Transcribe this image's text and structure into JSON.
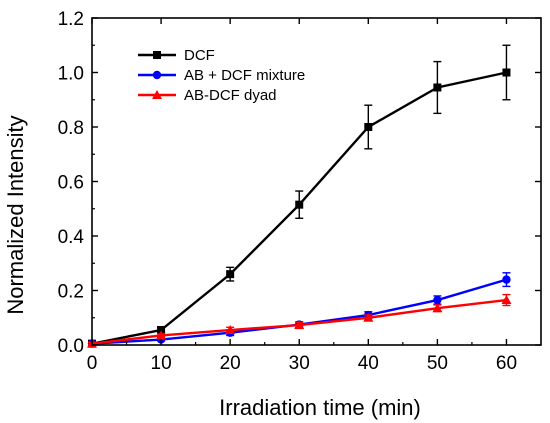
{
  "chart_data": {
    "type": "line",
    "title": "",
    "xlabel": "Irradiation time (min)",
    "ylabel": "Normalized Intensity",
    "xlim": [
      0,
      65
    ],
    "ylim": [
      0,
      1.2
    ],
    "x_ticks": [
      0,
      10,
      20,
      30,
      40,
      50,
      60
    ],
    "y_ticks": [
      "0.0",
      "0.2",
      "0.4",
      "0.6",
      "0.8",
      "1.0",
      "1.2"
    ],
    "grid": false,
    "legend_position": "top-left",
    "x": [
      0,
      10,
      20,
      30,
      40,
      50,
      60
    ],
    "series": [
      {
        "name": "DCF",
        "color": "#000000",
        "marker": "square",
        "values": [
          0.005,
          0.055,
          0.26,
          0.515,
          0.8,
          0.945,
          1.0
        ],
        "errors": [
          0.01,
          0.01,
          0.025,
          0.05,
          0.08,
          0.095,
          0.1
        ]
      },
      {
        "name": "AB + DCF mixture",
        "color": "#0000ff",
        "marker": "circle",
        "values": [
          0.005,
          0.02,
          0.045,
          0.075,
          0.11,
          0.165,
          0.24
        ],
        "errors": [
          0.005,
          0.005,
          0.01,
          0.01,
          0.012,
          0.015,
          0.025
        ]
      },
      {
        "name": "AB-DCF dyad",
        "color": "#ff0000",
        "marker": "triangle",
        "values": [
          0.005,
          0.035,
          0.055,
          0.073,
          0.1,
          0.135,
          0.165
        ],
        "errors": [
          0.005,
          0.006,
          0.01,
          0.01,
          0.01,
          0.012,
          0.02
        ]
      }
    ]
  }
}
